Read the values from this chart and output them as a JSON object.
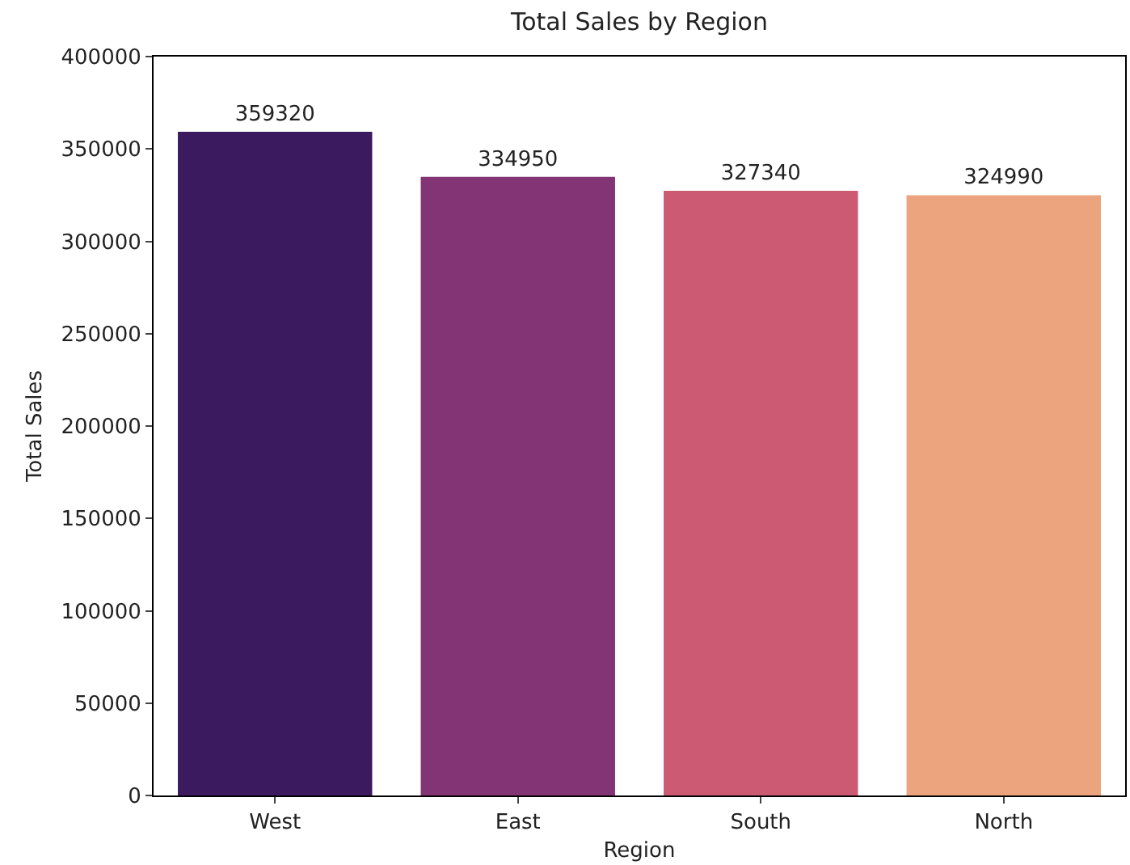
{
  "chart_data": {
    "type": "bar",
    "title": "Total Sales by Region",
    "xlabel": "Region",
    "ylabel": "Total Sales",
    "categories": [
      "West",
      "East",
      "South",
      "North"
    ],
    "values": [
      359320,
      334950,
      327340,
      324990
    ],
    "colors": [
      "#3c1a5f",
      "#823474",
      "#cb5a72",
      "#eca47e"
    ],
    "ylim": [
      0,
      400000
    ],
    "yticks": [
      0,
      50000,
      100000,
      150000,
      200000,
      250000,
      300000,
      350000,
      400000
    ],
    "data_labels": true
  }
}
